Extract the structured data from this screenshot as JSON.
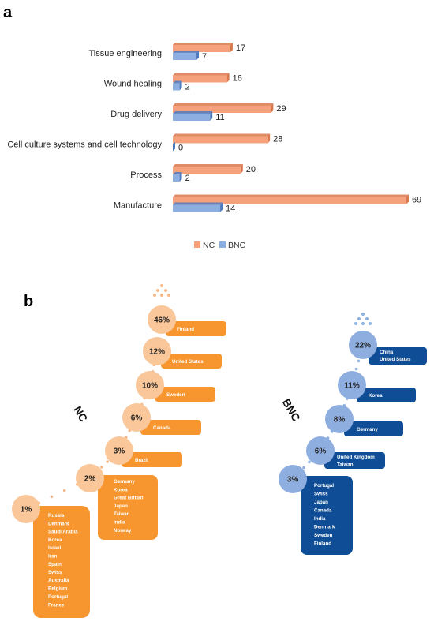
{
  "panel_a": {
    "letter": "a"
  },
  "panel_b": {
    "letter": "b"
  },
  "colors": {
    "nc_bar": "#F5A27C",
    "nc_bar_dark": "#D9784C",
    "bnc_bar": "#8CAEE0",
    "bnc_bar_dark": "#4E79BE",
    "nc_circle": "#F9C79A",
    "nc_box": "#F7962F",
    "nc_dot": "#F6B98A",
    "bnc_circle": "#8FAEE0",
    "bnc_box": "#0F4E96",
    "bnc_dot": "#8FB1DE"
  },
  "chart_data": [
    {
      "type": "bar",
      "orientation": "horizontal",
      "title": "",
      "xlabel": "",
      "ylabel": "",
      "categories": [
        "Tissue engineering",
        "Wound healing",
        "Drug delivery",
        "Cell culture systems and cell technology",
        "Process",
        "Manufacture"
      ],
      "series": [
        {
          "name": "NC",
          "values": [
            17,
            16,
            29,
            28,
            20,
            69
          ]
        },
        {
          "name": "BNC",
          "values": [
            7,
            2,
            11,
            0,
            2,
            14
          ]
        }
      ],
      "xlim": [
        0,
        69
      ],
      "grid": false,
      "legend": "bottom"
    },
    {
      "type": "other",
      "series_title": "NC",
      "steps": [
        {
          "percent": "46%",
          "countries": [
            "Finland"
          ]
        },
        {
          "percent": "12%",
          "countries": [
            "United States"
          ]
        },
        {
          "percent": "10%",
          "countries": [
            "Sweden"
          ]
        },
        {
          "percent": "6%",
          "countries": [
            "Canada"
          ]
        },
        {
          "percent": "3%",
          "countries": [
            "Brazil"
          ]
        },
        {
          "percent": "2%",
          "countries": [
            "Germany",
            "Korea",
            "Great Britain",
            "Japan",
            "Taiwan",
            "India",
            "Norway"
          ]
        },
        {
          "percent": "1%",
          "countries": [
            "Russia",
            "Denmark",
            "Saudi Arabia",
            "Korea",
            "Israel",
            "Iran",
            "Spain",
            "Swiss",
            "Australia",
            "Belgium",
            "Portugal",
            "France"
          ]
        }
      ]
    },
    {
      "type": "other",
      "series_title": "BNC",
      "steps": [
        {
          "percent": "22%",
          "countries": [
            "China",
            "United States"
          ]
        },
        {
          "percent": "11%",
          "countries": [
            "Korea"
          ]
        },
        {
          "percent": "8%",
          "countries": [
            "Germany"
          ]
        },
        {
          "percent": "6%",
          "countries": [
            "United Kingdom",
            "Taiwan"
          ]
        },
        {
          "percent": "3%",
          "countries": [
            "Portugal",
            "Swiss",
            "Japan",
            "Canada",
            "India",
            "Denmark",
            "Sweden",
            "Finland"
          ]
        }
      ]
    }
  ]
}
